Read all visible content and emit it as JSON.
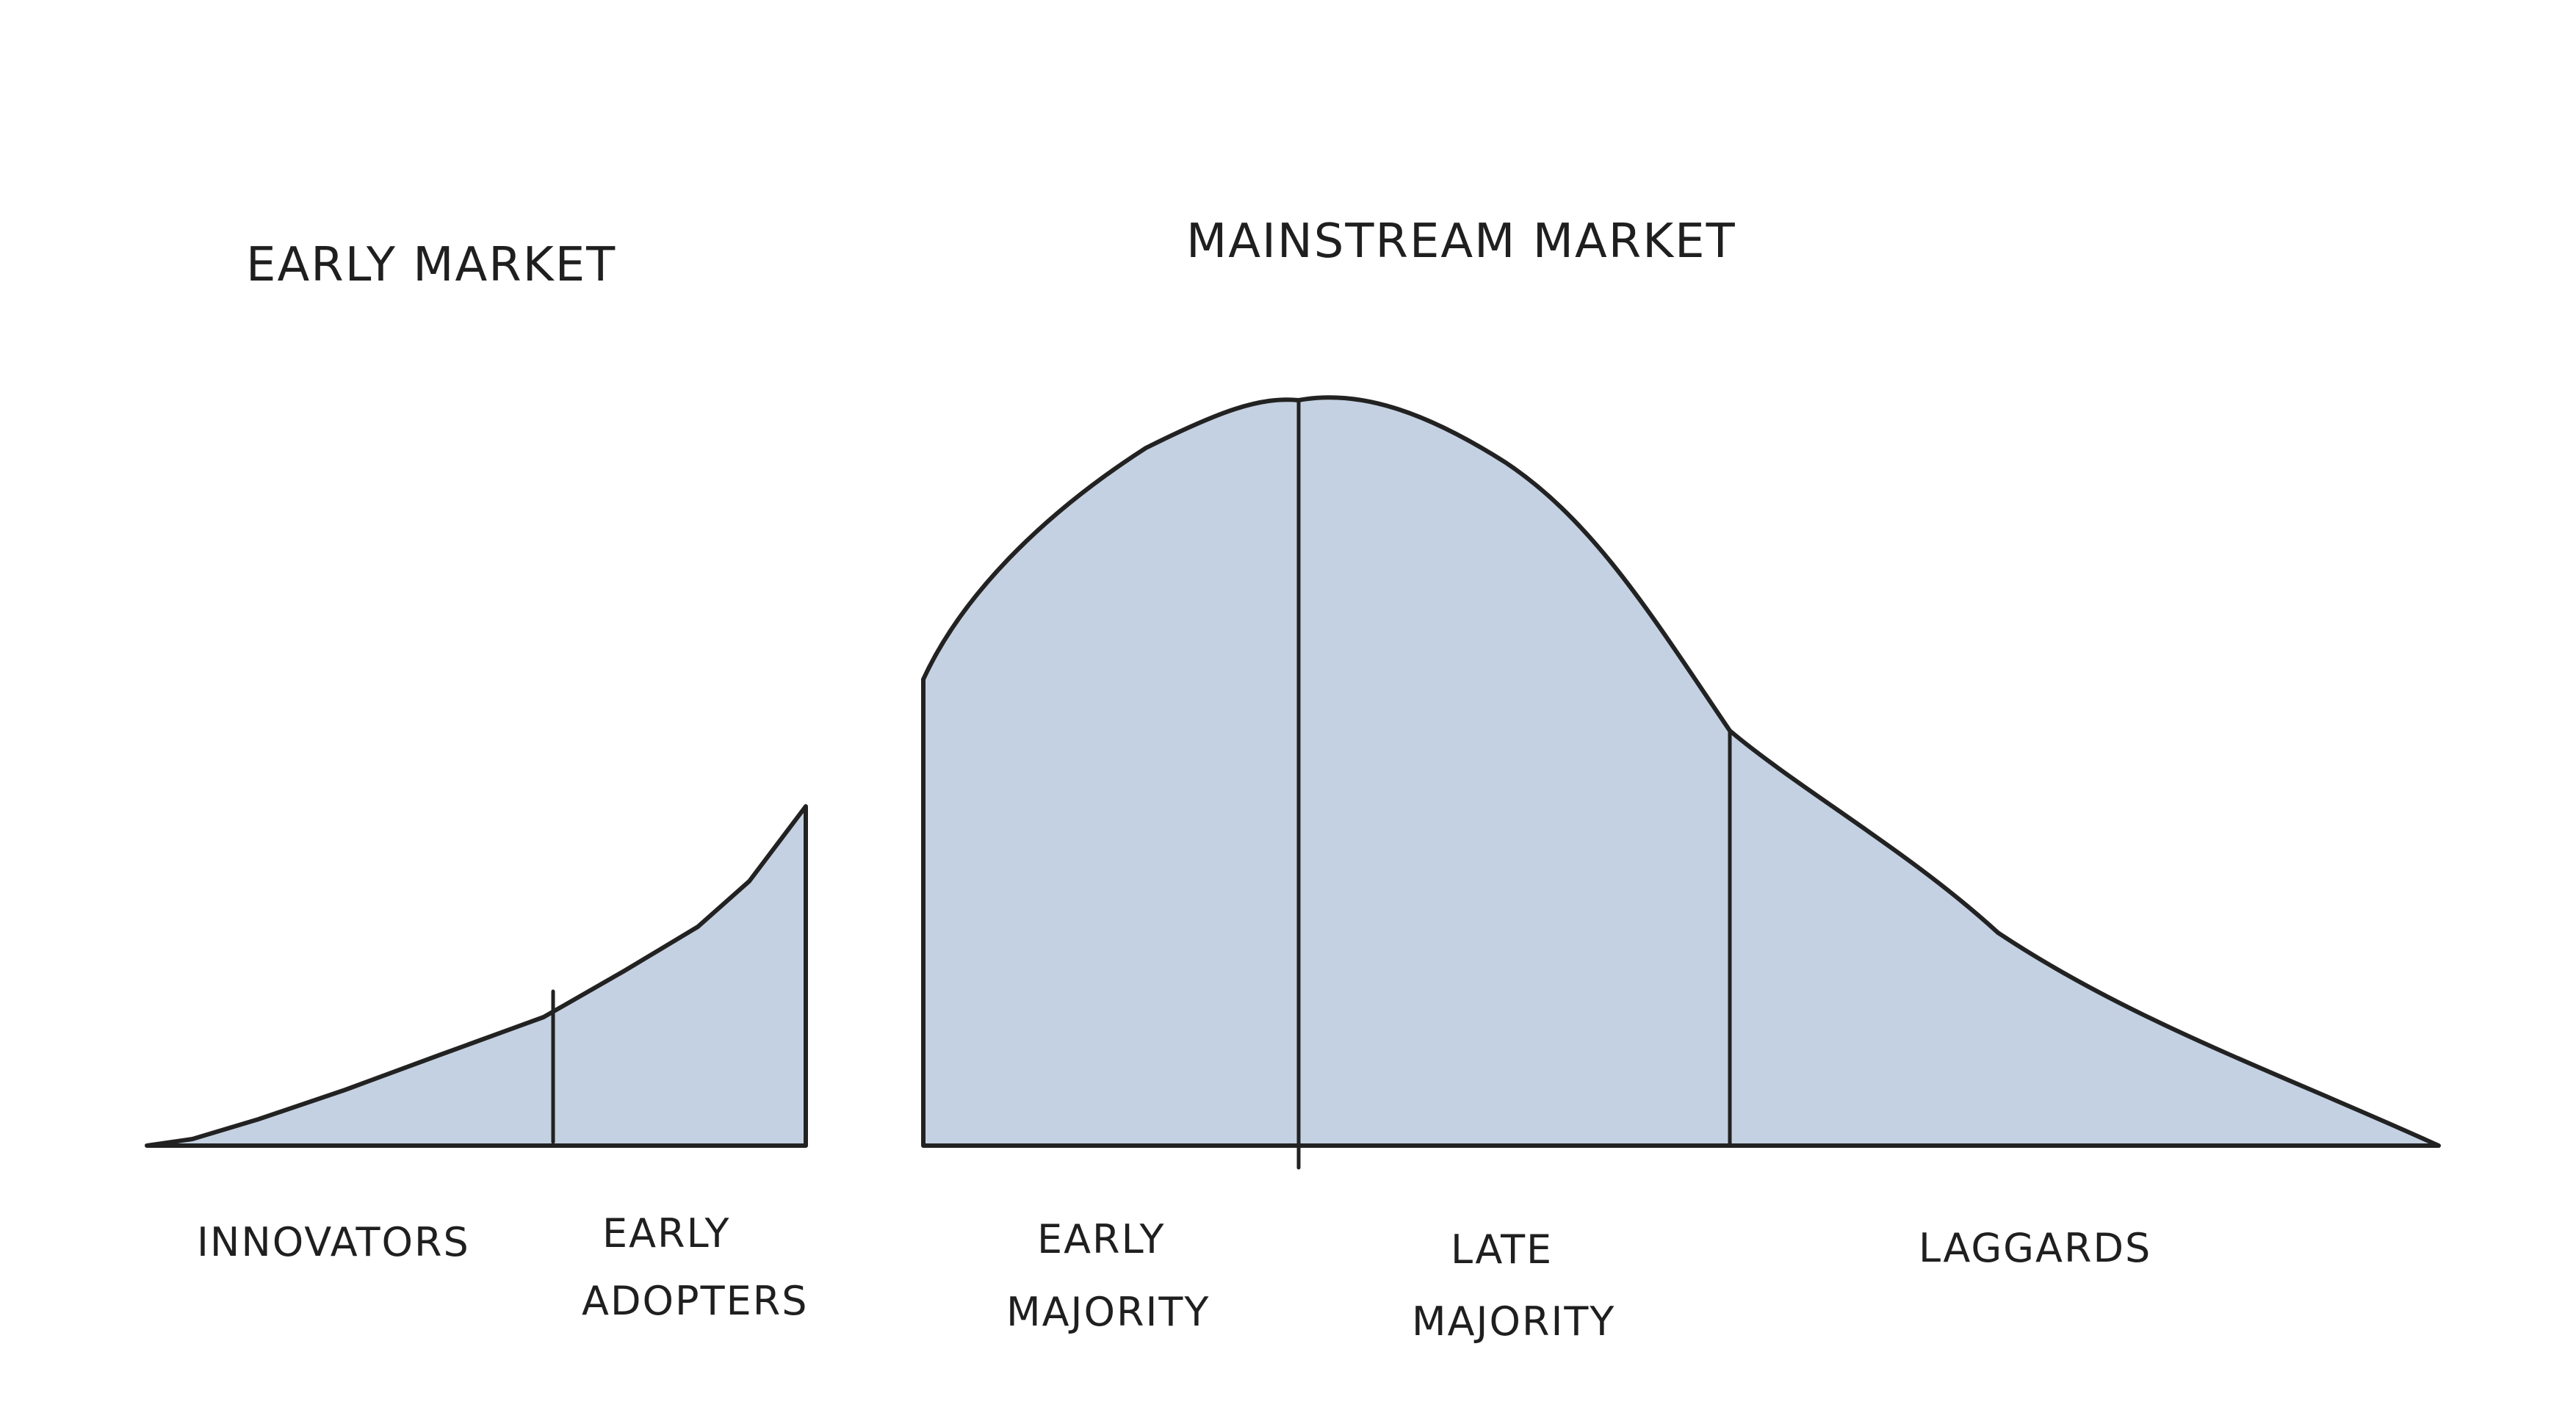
{
  "diagram": {
    "headings": {
      "early_market": "EARLY MARKET",
      "mainstream_market": "MAINSTREAM MARKET"
    },
    "segments": [
      {
        "id": "innovators",
        "lines": [
          "INNOVATORS"
        ]
      },
      {
        "id": "early-adopters",
        "lines": [
          "EARLY",
          "ADOPTERS"
        ]
      },
      {
        "id": "early-majority",
        "lines": [
          "EARLY",
          "MAJORITY"
        ]
      },
      {
        "id": "late-majority",
        "lines": [
          "LATE",
          "MAJORITY"
        ]
      },
      {
        "id": "laggards",
        "lines": [
          "LAGGARDS"
        ]
      }
    ],
    "colors": {
      "fill": "#c4d1e2",
      "stroke": "#222222",
      "text": "#1f1f1f",
      "background": "#ffffff"
    }
  }
}
